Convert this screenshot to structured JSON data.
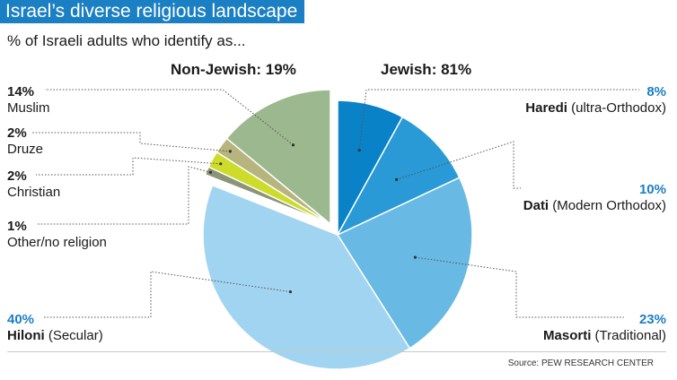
{
  "header": {
    "title": "Israel’s diverse religious landscape",
    "subtitle": "% of Israeli adults who identify as..."
  },
  "chart_data": {
    "type": "pie",
    "title": "Israel’s diverse religious landscape",
    "subtitle": "% of Israeli adults who identify as...",
    "groups": [
      {
        "name": "Jewish",
        "total": 81,
        "label": "Jewish: 81%"
      },
      {
        "name": "Non-Jewish",
        "total": 19,
        "label": "Non-Jewish: 19%"
      }
    ],
    "slices": [
      {
        "group": "Jewish",
        "value": 8,
        "pct_label": "8%",
        "name_bold": "Haredi",
        "name_rest": " (ultra-Orthodox)",
        "color": "#0a82c8"
      },
      {
        "group": "Jewish",
        "value": 10,
        "pct_label": "10%",
        "name_bold": "Dati",
        "name_rest": " (Modern Orthodox)",
        "color": "#2a9ad6"
      },
      {
        "group": "Jewish",
        "value": 23,
        "pct_label": "23%",
        "name_bold": "Masorti",
        "name_rest": " (Traditional)",
        "color": "#68b9e3"
      },
      {
        "group": "Jewish",
        "value": 40,
        "pct_label": "40%",
        "name_bold": "Hiloni",
        "name_rest": " (Secular)",
        "color": "#a1d4f0"
      },
      {
        "group": "Non-Jewish",
        "value": 1,
        "pct_label": "1%",
        "name_bold": "",
        "name_rest": "Other/no religion",
        "color": "#8b9478"
      },
      {
        "group": "Non-Jewish",
        "value": 2,
        "pct_label": "2%",
        "name_bold": "",
        "name_rest": "Christian",
        "color": "#cddc2a"
      },
      {
        "group": "Non-Jewish",
        "value": 2,
        "pct_label": "2%",
        "name_bold": "",
        "name_rest": "Druze",
        "color": "#b8b47e"
      },
      {
        "group": "Non-Jewish",
        "value": 14,
        "pct_label": "14%",
        "name_bold": "",
        "name_rest": "Muslim",
        "color": "#9cb88f"
      }
    ]
  },
  "footer": {
    "source": "Source: PEW RESEARCH CENTER"
  },
  "colors": {
    "title_bg": "#1b7fc4",
    "accent_text": "#1b7fc4",
    "leader": "#555555"
  }
}
